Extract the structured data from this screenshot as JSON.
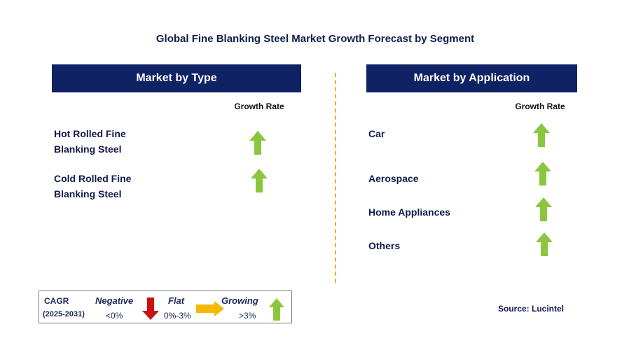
{
  "title": "Global Fine Blanking Steel Market  Growth Forecast by Segment",
  "left_panel": {
    "header": "Market by Type",
    "growth_rate_label": "Growth Rate",
    "items": [
      {
        "line1": "Hot Rolled Fine",
        "line2": "Blanking Steel",
        "trend": "growing",
        "arrow_icon": "up-arrow-icon",
        "color": "#8cc63f"
      },
      {
        "line1": "Cold Rolled Fine",
        "line2": "Blanking Steel",
        "trend": "growing",
        "arrow_icon": "up-arrow-icon",
        "color": "#8cc63f"
      }
    ]
  },
  "right_panel": {
    "header": "Market by Application",
    "growth_rate_label": "Growth Rate",
    "items": [
      {
        "label": "Car",
        "trend": "growing",
        "arrow_icon": "up-arrow-icon",
        "color": "#8cc63f"
      },
      {
        "label": "Aerospace",
        "trend": "growing",
        "arrow_icon": "up-arrow-icon",
        "color": "#8cc63f"
      },
      {
        "label": "Home Appliances",
        "trend": "growing",
        "arrow_icon": "up-arrow-icon",
        "color": "#8cc63f"
      },
      {
        "label": "Others",
        "trend": "growing",
        "arrow_icon": "up-arrow-icon",
        "color": "#8cc63f"
      }
    ]
  },
  "legend": {
    "cagr_label": "CAGR",
    "period": "(2025-2031)",
    "negative": {
      "label": "Negative",
      "range": "<0%",
      "color": "#cc1111",
      "icon": "down-arrow-icon"
    },
    "flat": {
      "label": "Flat",
      "range": "0%-3%",
      "color": "#f5b800",
      "icon": "right-arrow-icon"
    },
    "growing": {
      "label": "Growing",
      "range": ">3%",
      "color": "#8cc63f",
      "icon": "up-arrow-icon"
    }
  },
  "source": "Source: Lucintel",
  "colors": {
    "header_bg": "#0f2264",
    "divider": "#f0b020",
    "growing": "#8cc63f"
  }
}
